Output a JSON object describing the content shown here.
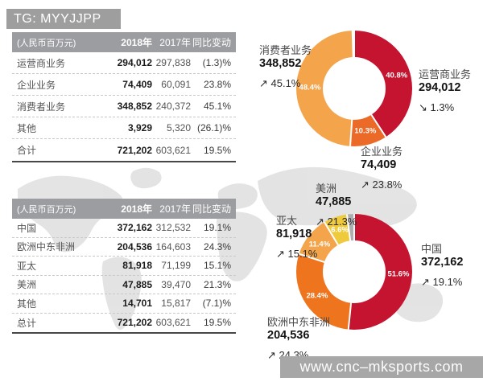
{
  "top_bar": {
    "label": "TG: MYYJJPP"
  },
  "watermark": {
    "label": "www.cnc–mksports.com"
  },
  "tables": [
    {
      "header": {
        "unit": "(人民币百万元)",
        "col_2018": "2018年",
        "col_2017": "2017年",
        "col_change": "同比变动"
      },
      "rows": [
        {
          "label": "运营商业务",
          "v2018": "294,012",
          "v2017": "297,838",
          "change": "(1.3)%"
        },
        {
          "label": "企业业务",
          "v2018": "74,409",
          "v2017": "60,091",
          "change": "23.8%"
        },
        {
          "label": "消费者业务",
          "v2018": "348,852",
          "v2017": "240,372",
          "change": "45.1%"
        },
        {
          "label": "其他",
          "v2018": "3,929",
          "v2017": "5,320",
          "change": "(26.1)%"
        },
        {
          "label": "合计",
          "v2018": "721,202",
          "v2017": "603,621",
          "change": "19.5%"
        }
      ]
    },
    {
      "header": {
        "unit": "(人民币百万元)",
        "col_2018": "2018年",
        "col_2017": "2017年",
        "col_change": "同比变动"
      },
      "rows": [
        {
          "label": "中国",
          "v2018": "372,162",
          "v2017": "312,532",
          "change": "19.1%"
        },
        {
          "label": "欧洲中东非洲",
          "v2018": "204,536",
          "v2017": "164,603",
          "change": "24.3%"
        },
        {
          "label": "亚太",
          "v2018": "81,918",
          "v2017": "71,199",
          "change": "15.1%"
        },
        {
          "label": "美洲",
          "v2018": "47,885",
          "v2017": "39,470",
          "change": "21.3%"
        },
        {
          "label": "其他",
          "v2018": "14,701",
          "v2017": "15,817",
          "change": "(7.1)%"
        },
        {
          "label": "总计",
          "v2018": "721,202",
          "v2017": "603,621",
          "change": "19.5%"
        }
      ]
    }
  ],
  "chart_data": [
    {
      "type": "pie",
      "name": "revenue-by-business",
      "segments": [
        {
          "label": "运营商业务",
          "share_pct": 40.8,
          "value_2018": "294,012",
          "yoy": "↘ 1.3%",
          "color": "#c5142f",
          "show_pct": true
        },
        {
          "label": "企业业务",
          "share_pct": 10.3,
          "value_2018": "74,409",
          "yoy": "↗ 23.8%",
          "color": "#ec6a28",
          "show_pct": true
        },
        {
          "label": "消费者业务",
          "share_pct": 48.4,
          "value_2018": "348,852",
          "yoy": "↗ 45.1%",
          "color": "#f4a54c",
          "show_pct": true
        },
        {
          "label": "其他",
          "share_pct": 0.5,
          "color": "#ffffff",
          "show_pct": false
        }
      ]
    },
    {
      "type": "pie",
      "name": "revenue-by-region",
      "segments": [
        {
          "label": "中国",
          "share_pct": 51.6,
          "value_2018": "372,162",
          "yoy": "↗ 19.1%",
          "color": "#c5142f",
          "show_pct": true
        },
        {
          "label": "欧洲中东非洲",
          "share_pct": 28.4,
          "value_2018": "204,536",
          "yoy": "↗ 24.3%",
          "color": "#ee751d",
          "show_pct": true
        },
        {
          "label": "亚太",
          "share_pct": 11.4,
          "value_2018": "81,918",
          "yoy": "↗ 15.1%",
          "color": "#f4a54c",
          "show_pct": true
        },
        {
          "label": "美洲",
          "share_pct": 6.6,
          "value_2018": "47,885",
          "yoy": "↗ 21.3%",
          "color": "#eeca3c",
          "show_pct": true
        },
        {
          "label": "其他",
          "share_pct": 2.0,
          "color": "#aeaeae",
          "show_pct": false
        }
      ]
    }
  ]
}
